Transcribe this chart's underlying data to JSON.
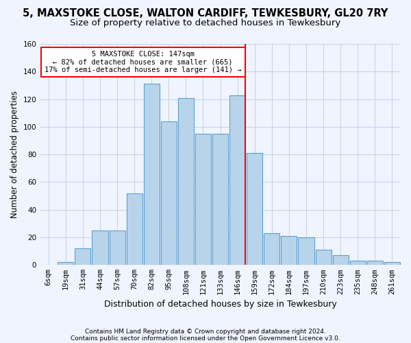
{
  "title1": "5, MAXSTOKE CLOSE, WALTON CARDIFF, TEWKESBURY, GL20 7RY",
  "title2": "Size of property relative to detached houses in Tewkesbury",
  "xlabel": "Distribution of detached houses by size in Tewkesbury",
  "ylabel": "Number of detached properties",
  "categories": [
    "6sqm",
    "19sqm",
    "31sqm",
    "44sqm",
    "57sqm",
    "70sqm",
    "82sqm",
    "95sqm",
    "108sqm",
    "121sqm",
    "133sqm",
    "146sqm",
    "159sqm",
    "172sqm",
    "184sqm",
    "197sqm",
    "210sqm",
    "223sqm",
    "235sqm",
    "248sqm",
    "261sqm"
  ],
  "values": [
    0,
    2,
    12,
    25,
    25,
    52,
    131,
    104,
    121,
    95,
    95,
    123,
    81,
    23,
    21,
    20,
    11,
    7,
    3,
    3,
    2
  ],
  "bar_color": "#b8d4ea",
  "bar_edge_color": "#5a9fd4",
  "vline_color": "red",
  "vline_pos": 11.45,
  "annotation_text": "5 MAXSTOKE CLOSE: 147sqm\n← 82% of detached houses are smaller (665)\n17% of semi-detached houses are larger (141) →",
  "ylim": [
    0,
    160
  ],
  "yticks": [
    0,
    20,
    40,
    60,
    80,
    100,
    120,
    140,
    160
  ],
  "footnote1": "Contains HM Land Registry data © Crown copyright and database right 2024.",
  "footnote2": "Contains public sector information licensed under the Open Government Licence v3.0.",
  "bg_color": "#f0f4ff",
  "grid_color": "#c8d4e8",
  "title1_fontsize": 10.5,
  "title2_fontsize": 9.5,
  "xlabel_fontsize": 9,
  "ylabel_fontsize": 8.5,
  "tick_fontsize": 7.5,
  "footnote_fontsize": 6.5
}
